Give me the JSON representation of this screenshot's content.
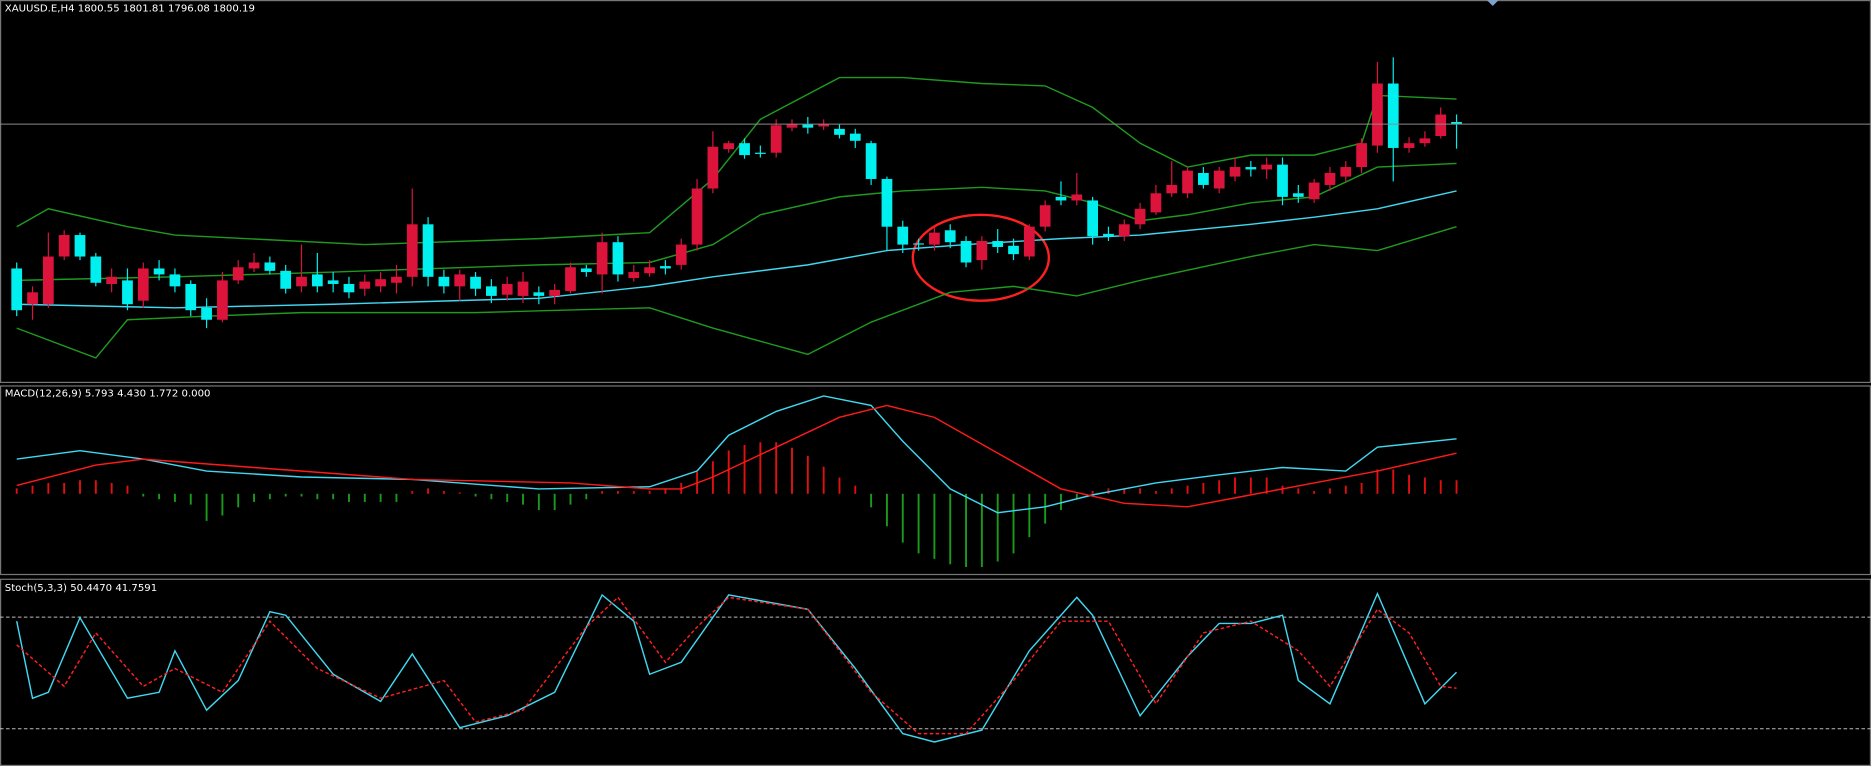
{
  "chart_data": [
    {
      "type": "candlestick",
      "title": "XAUUSD.E,H4  1800.55 1801.81 1796.08 1800.19",
      "up_color": "#dc143c",
      "down_color": "#00f0f0",
      "ylim": [
        1757,
        1821
      ],
      "open": [
        1776.0,
        1770.0,
        1770.0,
        1778.0,
        1781.6,
        1778.0,
        1773.4,
        1774.0,
        1770.6,
        1776.0,
        1775.0,
        1773.4,
        1769.4,
        1767.4,
        1774.0,
        1776.0,
        1777.0,
        1775.6,
        1773.0,
        1775.0,
        1774.0,
        1773.4,
        1772.6,
        1773.0,
        1773.6,
        1774.6,
        1783.4,
        1774.6,
        1773.0,
        1774.6,
        1773.0,
        1771.6,
        1771.4,
        1772.0,
        1771.4,
        1772.2,
        1776.0,
        1775.0,
        1780.4,
        1774.4,
        1775.2,
        1776.4,
        1776.6,
        1780.0,
        1789.4,
        1796.0,
        1797.0,
        1795.4,
        1795.4,
        1799.6,
        1800.2,
        1799.8,
        1799.4,
        1798.6,
        1797.0,
        1791.0,
        1783.0,
        1780.2,
        1780.0,
        1782.4,
        1780.6,
        1777.4,
        1780.6,
        1779.8,
        1778.0,
        1783.0,
        1788.0,
        1787.4,
        1787.4,
        1781.8,
        1781.4,
        1783.4,
        1785.4,
        1788.6,
        1788.6,
        1792.0,
        1789.4,
        1791.4,
        1793.0,
        1792.6,
        1793.4,
        1788.6,
        1787.6,
        1790.0,
        1791.4,
        1793.0,
        1796.6,
        1807.0,
        1796.2,
        1797.0,
        1798.2,
        1800.55
      ],
      "high": [
        1777.0,
        1773.0,
        1782.0,
        1782.4,
        1782.0,
        1778.6,
        1776.0,
        1776.0,
        1777.0,
        1777.4,
        1776.0,
        1774.0,
        1771.0,
        1775.4,
        1777.4,
        1778.6,
        1778.0,
        1776.6,
        1780.0,
        1778.6,
        1775.4,
        1774.6,
        1775.0,
        1775.4,
        1776.6,
        1789.4,
        1784.6,
        1775.8,
        1775.8,
        1775.4,
        1774.2,
        1774.6,
        1775.4,
        1773.0,
        1773.4,
        1777.0,
        1776.6,
        1782.0,
        1781.4,
        1776.6,
        1777.4,
        1777.4,
        1781.0,
        1791.0,
        1799.0,
        1797.4,
        1797.8,
        1796.6,
        1801.0,
        1801.0,
        1801.4,
        1801.0,
        1800.2,
        1799.4,
        1797.4,
        1791.4,
        1784.0,
        1781.0,
        1783.0,
        1783.4,
        1781.4,
        1781.4,
        1782.6,
        1781.0,
        1783.4,
        1787.4,
        1790.6,
        1792.0,
        1788.0,
        1783.0,
        1784.2,
        1787.0,
        1790.0,
        1794.0,
        1793.0,
        1793.0,
        1793.0,
        1794.6,
        1794.0,
        1794.6,
        1794.6,
        1790.0,
        1791.0,
        1793.0,
        1794.0,
        1797.8,
        1810.6,
        1811.4,
        1798.0,
        1799.0,
        1803.0,
        1801.81
      ],
      "low": [
        1768.0,
        1767.4,
        1769.4,
        1777.4,
        1777.4,
        1773.0,
        1772.0,
        1769.0,
        1769.4,
        1774.0,
        1772.0,
        1768.0,
        1766.0,
        1767.0,
        1773.4,
        1775.4,
        1775.0,
        1771.8,
        1772.0,
        1772.0,
        1772.0,
        1771.0,
        1771.4,
        1772.0,
        1771.8,
        1773.0,
        1773.0,
        1771.8,
        1770.6,
        1771.4,
        1770.2,
        1770.6,
        1770.2,
        1770.0,
        1770.0,
        1771.8,
        1774.6,
        1771.8,
        1773.8,
        1773.8,
        1774.6,
        1775.0,
        1775.8,
        1779.0,
        1788.6,
        1795.4,
        1794.4,
        1794.6,
        1794.6,
        1799.0,
        1798.6,
        1799.2,
        1797.8,
        1796.2,
        1790.0,
        1779.0,
        1778.6,
        1779.0,
        1779.0,
        1779.4,
        1776.2,
        1775.8,
        1778.6,
        1777.4,
        1777.4,
        1782.2,
        1786.6,
        1786.6,
        1780.0,
        1780.6,
        1780.6,
        1782.6,
        1785.0,
        1788.0,
        1787.8,
        1789.4,
        1788.6,
        1790.6,
        1791.4,
        1791.0,
        1786.6,
        1787.0,
        1787.0,
        1789.0,
        1790.6,
        1792.0,
        1795.4,
        1790.6,
        1795.4,
        1796.4,
        1797.8,
        1796.08
      ],
      "close": [
        1769.0,
        1772.0,
        1778.0,
        1781.6,
        1778.0,
        1773.6,
        1774.6,
        1770.0,
        1776.0,
        1775.0,
        1773.0,
        1769.0,
        1767.4,
        1774.0,
        1776.2,
        1777.0,
        1775.6,
        1772.6,
        1774.6,
        1773.0,
        1773.4,
        1772.0,
        1773.8,
        1774.2,
        1774.6,
        1783.4,
        1774.6,
        1773.0,
        1775.0,
        1772.6,
        1771.4,
        1773.4,
        1773.8,
        1771.4,
        1772.4,
        1776.2,
        1775.4,
        1780.4,
        1775.0,
        1775.4,
        1776.2,
        1776.0,
        1780.0,
        1789.4,
        1796.4,
        1797.0,
        1795.0,
        1795.2,
        1800.0,
        1800.2,
        1799.6,
        1800.2,
        1798.4,
        1797.4,
        1791.0,
        1783.0,
        1780.0,
        1780.0,
        1782.0,
        1780.4,
        1777.0,
        1780.6,
        1779.6,
        1778.4,
        1783.0,
        1786.6,
        1787.4,
        1788.4,
        1781.4,
        1781.4,
        1783.4,
        1786.0,
        1788.6,
        1790.0,
        1792.4,
        1790.0,
        1792.4,
        1793.0,
        1792.6,
        1793.4,
        1788.0,
        1788.0,
        1790.4,
        1792.0,
        1793.0,
        1797.0,
        1807.0,
        1796.2,
        1797.0,
        1797.8,
        1801.8,
        1800.19
      ],
      "lines": [
        {
          "color": "#1f9a1f",
          "x": [
            0,
            2,
            7,
            10,
            22,
            33,
            40,
            44,
            47,
            52,
            56,
            61,
            65,
            68,
            71,
            74,
            78,
            82,
            85,
            86,
            91
          ],
          "values": [
            1783.0,
            1786.0,
            1783.0,
            1781.6,
            1780.0,
            1781.0,
            1782.0,
            1791.0,
            1801.0,
            1808.0,
            1808.0,
            1807.0,
            1806.6,
            1803.0,
            1797.0,
            1793.0,
            1795.0,
            1795.0,
            1797.0,
            1805.0,
            1804.4
          ]
        },
        {
          "color": "#1f9a1f",
          "x": [
            0,
            10,
            20,
            33,
            40,
            44,
            47,
            52,
            56,
            61,
            65,
            68,
            71,
            74,
            78,
            82,
            86,
            91
          ],
          "values": [
            1774.0,
            1774.6,
            1775.4,
            1776.6,
            1777.0,
            1780.0,
            1785.0,
            1788.0,
            1789.0,
            1789.6,
            1789.0,
            1787.0,
            1784.0,
            1785.0,
            1787.0,
            1788.0,
            1793.0,
            1793.6
          ]
        },
        {
          "color": "#1f9a1f",
          "x": [
            0,
            5,
            7,
            12,
            18,
            29,
            40,
            44,
            50,
            54,
            59,
            63,
            67,
            71,
            78,
            82,
            86,
            91
          ],
          "values": [
            1766.0,
            1761.0,
            1767.4,
            1768.0,
            1768.6,
            1768.6,
            1769.4,
            1766.0,
            1761.6,
            1767.0,
            1772.0,
            1773.0,
            1771.4,
            1774.0,
            1778.0,
            1780.0,
            1779.0,
            1783.0
          ]
        },
        {
          "color": "#40d8f0",
          "x": [
            0,
            10,
            20,
            33,
            40,
            44,
            50,
            55,
            60,
            66,
            71,
            78,
            82,
            86,
            91
          ],
          "values": [
            1770.0,
            1769.4,
            1770.0,
            1771.0,
            1773.0,
            1774.6,
            1776.6,
            1779.0,
            1780.0,
            1781.0,
            1781.6,
            1783.4,
            1784.6,
            1786.0,
            1789.0
          ]
        }
      ]
    },
    {
      "type": "macd",
      "title": "MACD(12,26,9) 5.793 4.430 1.772 0.000",
      "up_color": "#e01010",
      "down_color": "#1a9a1a",
      "ylim": [
        -30,
        40
      ],
      "values": [
        2,
        3,
        4,
        4,
        5,
        5,
        4,
        3,
        -1,
        -2,
        -3,
        -4,
        -10,
        -8,
        -5,
        -3,
        -2,
        -1,
        -1,
        -2,
        -2,
        -3,
        -3,
        -3,
        -3,
        1,
        2,
        1,
        0.5,
        -1,
        -2,
        -3,
        -4,
        -6,
        -6,
        -4,
        -2,
        1,
        1,
        1,
        1,
        2,
        4,
        8,
        12,
        16,
        18,
        19,
        19,
        17,
        14,
        10,
        6,
        3,
        -5,
        -12,
        -18,
        -22,
        -24,
        -26,
        -27,
        -27,
        -25,
        -22,
        -16,
        -11,
        -6,
        -2,
        1,
        2,
        2,
        2,
        1,
        2,
        3,
        4,
        5,
        6,
        6,
        6,
        3,
        2,
        1,
        2,
        3,
        4,
        9,
        9,
        7,
        6,
        5,
        5
      ],
      "lines": [
        {
          "color": "#40d8f0",
          "x": [
            0,
            4,
            8,
            12,
            18,
            25,
            33,
            40,
            43,
            45,
            48,
            51,
            54,
            56,
            59,
            62,
            65,
            68,
            72,
            76,
            80,
            84,
            86,
            91
          ],
          "values": [
            12.8,
            15.9,
            12.8,
            8.4,
            6.2,
            5.3,
            1.8,
            2.6,
            8.4,
            21.6,
            30.4,
            36.1,
            32.6,
            19.4,
            1.8,
            -7.0,
            -4.8,
            -0.4,
            4.0,
            7.0,
            9.7,
            8.4,
            17.2,
            20.3
          ]
        },
        {
          "color": "#ff1a1a",
          "x": [
            0,
            5,
            8,
            15,
            25,
            35,
            40,
            42,
            44,
            48,
            52,
            55,
            58,
            62,
            66,
            70,
            74,
            78,
            82,
            86,
            91
          ],
          "values": [
            3.1,
            10.6,
            12.8,
            9.7,
            5.3,
            4.0,
            1.8,
            1.8,
            6.2,
            17.2,
            28.2,
            32.6,
            28.2,
            15.0,
            1.8,
            -3.5,
            -4.8,
            -0.4,
            4.0,
            8.4,
            15.0
          ]
        }
      ]
    },
    {
      "type": "stochastic",
      "title": "Stoch(5,3,3) 50.4470 41.7591",
      "ylim": [
        0,
        100
      ],
      "levels": [
        20,
        80
      ],
      "lines": [
        {
          "color": "#40d8f0",
          "x": [
            0,
            1,
            2,
            4,
            7,
            9,
            10,
            12,
            14,
            16,
            17,
            20,
            23,
            25,
            28,
            31,
            34,
            37,
            39,
            40,
            42,
            45,
            50,
            53,
            56,
            58,
            61,
            64,
            67,
            68,
            71,
            74,
            76,
            78,
            80,
            81,
            83,
            86,
            87,
            89,
            91
          ],
          "values": [
            77.8,
            36.4,
            39.6,
            79.7,
            36.4,
            39.6,
            61.9,
            30.0,
            45.9,
            82.9,
            81.0,
            49.3,
            34.7,
            60.2,
            20.6,
            27.0,
            39.6,
            91.9,
            77.8,
            49.3,
            55.7,
            91.9,
            84.2,
            52.4,
            17.4,
            12.9,
            19.3,
            61.9,
            90.6,
            81.0,
            27.0,
            58.9,
            76.6,
            76.6,
            81.0,
            45.9,
            33.4,
            92.6,
            72.9,
            33.4,
            50.4
          ]
        },
        {
          "color": "#ff2020",
          "dash": true,
          "x": [
            0,
            3,
            5,
            8,
            10,
            13,
            16,
            19,
            23,
            27,
            29,
            32,
            36,
            38,
            41,
            43,
            45,
            50,
            54,
            57,
            60,
            63,
            66,
            69,
            72,
            75,
            78,
            81,
            83,
            86,
            88,
            90,
            91
          ],
          "values": [
            65.1,
            42.8,
            71.5,
            42.8,
            52.4,
            39.6,
            77.8,
            52.4,
            36.4,
            45.9,
            23.6,
            30.0,
            74.7,
            90.6,
            55.7,
            74.7,
            90.6,
            84.2,
            39.6,
            17.4,
            17.4,
            45.9,
            77.8,
            77.8,
            33.4,
            71.5,
            77.8,
            61.9,
            42.8,
            84.2,
            71.5,
            42.8,
            41.8
          ]
        }
      ]
    }
  ]
}
